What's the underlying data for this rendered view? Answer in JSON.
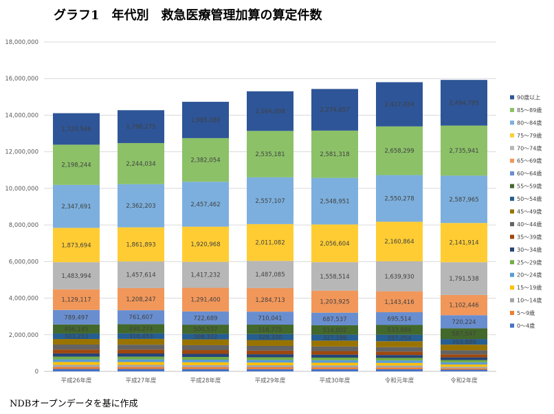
{
  "title": "グラフ1　年代別　救急医療管理加算の算定件数",
  "source_note": "NDBオープンデータを基に作成",
  "chart_data": {
    "type": "bar",
    "stacked": true,
    "categories": [
      "平成26年度",
      "平成27年度",
      "平成28年度",
      "平成29年度",
      "平成30年度",
      "令和元年度",
      "令和2年度"
    ],
    "ylim": [
      0,
      18000000
    ],
    "yticks": [
      0,
      2000000,
      4000000,
      6000000,
      8000000,
      10000000,
      12000000,
      14000000,
      16000000,
      18000000
    ],
    "ytick_labels": [
      "0",
      "2,000,000",
      "4,000,000",
      "6,000,000",
      "8,000,000",
      "10,000,000",
      "12,000,000",
      "14,000,000",
      "16,000,000",
      "18,000,000"
    ],
    "grid": true,
    "legend_position": "right",
    "series": [
      {
        "name": "0～4歳",
        "color": "#4472c4",
        "values": [
          130000,
          130000,
          125000,
          120000,
          118000,
          115000,
          95000
        ],
        "labels": [
          "",
          "",
          "",
          "",
          "",
          "",
          ""
        ]
      },
      {
        "name": "5～9歳",
        "color": "#ed7d31",
        "values": [
          110000,
          110000,
          108000,
          105000,
          103000,
          100000,
          70000
        ],
        "labels": [
          "",
          "",
          "",
          "",
          "",
          "",
          ""
        ]
      },
      {
        "name": "10～14歳",
        "color": "#a5a5a5",
        "values": [
          120000,
          118000,
          115000,
          112000,
          110000,
          108000,
          90000
        ],
        "labels": [
          "",
          "",
          "",
          "",
          "",
          "",
          ""
        ]
      },
      {
        "name": "15～19歳",
        "color": "#ffc000",
        "values": [
          150000,
          150000,
          148000,
          145000,
          140000,
          138000,
          120000
        ],
        "labels": [
          "",
          "",
          "",
          "",
          "",
          "",
          ""
        ]
      },
      {
        "name": "20～24歳",
        "color": "#5b9bd5",
        "values": [
          145000,
          145000,
          143000,
          140000,
          138000,
          135000,
          120000
        ],
        "labels": [
          "",
          "",
          "",
          "",
          "",
          "",
          ""
        ]
      },
      {
        "name": "25～29歳",
        "color": "#70ad47",
        "values": [
          150000,
          150000,
          148000,
          145000,
          142000,
          140000,
          125000
        ],
        "labels": [
          "",
          "",
          "",
          "",
          "",
          "",
          ""
        ]
      },
      {
        "name": "30～34歳",
        "color": "#264478",
        "values": [
          175000,
          175000,
          172000,
          168000,
          165000,
          160000,
          145000
        ],
        "labels": [
          "",
          "",
          "",
          "",
          "",
          "",
          ""
        ]
      },
      {
        "name": "35～39歳",
        "color": "#9e480e",
        "values": [
          215000,
          212000,
          205000,
          198000,
          192000,
          185000,
          165000
        ],
        "labels": [
          "",
          "",
          "",
          "",
          "",
          "",
          ""
        ]
      },
      {
        "name": "40～44歳",
        "color": "#636363",
        "values": [
          270000,
          270000,
          265000,
          258000,
          250000,
          242000,
          220000
        ],
        "labels": [
          "",
          "",
          "",
          "",
          "",
          "",
          ""
        ]
      },
      {
        "name": "45～49歳",
        "color": "#997300",
        "values": [
          300000,
          310000,
          315000,
          318000,
          320000,
          322000,
          310000
        ],
        "labels": [
          "",
          "",
          "",
          "",
          "",
          "",
          ""
        ]
      },
      {
        "name": "50～54歳",
        "color": "#255e91",
        "values": [
          303253,
          310453,
          308322,
          328330,
          327186,
          357054,
          303889
        ],
        "labels": [
          "303,253",
          "310,453",
          "308,322",
          "328,330",
          "327,186",
          "357,054",
          "303,889"
        ]
      },
      {
        "name": "55～59歳",
        "color": "#43682b",
        "values": [
          496145,
          498274,
          500537,
          516775,
          514002,
          533884,
          587547
        ],
        "labels": [
          "496,145",
          "498,274",
          "500,537",
          "516,775",
          "514,002",
          "533,884",
          "587,547"
        ]
      },
      {
        "name": "60～64歳",
        "color": "#698ed0",
        "values": [
          789497,
          761607,
          722689,
          710041,
          687537,
          695514,
          720224
        ],
        "labels": [
          "789,497",
          "761,607",
          "722,689",
          "710,041",
          "687,537",
          "695,514",
          "720,224"
        ]
      },
      {
        "name": "65～69歳",
        "color": "#f1975a",
        "values": [
          1129117,
          1208247,
          1291400,
          1284713,
          1203925,
          1143416,
          1102446
        ],
        "labels": [
          "1,129,117",
          "1,208,247",
          "1,291,400",
          "1,284,713",
          "1,203,925",
          "1,143,416",
          "1,102,446"
        ]
      },
      {
        "name": "70～74歳",
        "color": "#b7b7b7",
        "values": [
          1483994,
          1457614,
          1417232,
          1487085,
          1558514,
          1639930,
          1791538
        ],
        "labels": [
          "1,483,994",
          "1,457,614",
          "1,417,232",
          "1,487,085",
          "1,558,514",
          "1,639,930",
          "1,791,538"
        ]
      },
      {
        "name": "75～79歳",
        "color": "#ffcd33",
        "values": [
          1873694,
          1861893,
          1920968,
          2011082,
          2056604,
          2160864,
          2141914
        ],
        "labels": [
          "1,873,694",
          "1,861,893",
          "1,920,968",
          "2,011,082",
          "2,056,604",
          "2,160,864",
          "2,141,914"
        ]
      },
      {
        "name": "80～84歳",
        "color": "#7cafdd",
        "values": [
          2347691,
          2362203,
          2457462,
          2557107,
          2548951,
          2550278,
          2587965
        ],
        "labels": [
          "2,347,691",
          "2,362,203",
          "2,457,462",
          "2,557,107",
          "2,548,951",
          "2,550,278",
          "2,587,965"
        ]
      },
      {
        "name": "85～89歳",
        "color": "#8cc168",
        "values": [
          2198244,
          2244034,
          2382054,
          2535181,
          2581318,
          2658299,
          2735941
        ],
        "labels": [
          "2,198,244",
          "2,244,034",
          "2,382,054",
          "2,535,181",
          "2,581,318",
          "2,658,299",
          "2,735,941"
        ]
      },
      {
        "name": "90歳以上",
        "color": "#2e5597",
        "values": [
          1720546,
          1796275,
          1985080,
          2164008,
          2274857,
          2417434,
          2494795
        ],
        "labels": [
          "1,720,546",
          "1,796,275",
          "1,985,080",
          "2,164,008",
          "2,274,857",
          "2,417,434",
          "2,494,795"
        ]
      }
    ]
  }
}
